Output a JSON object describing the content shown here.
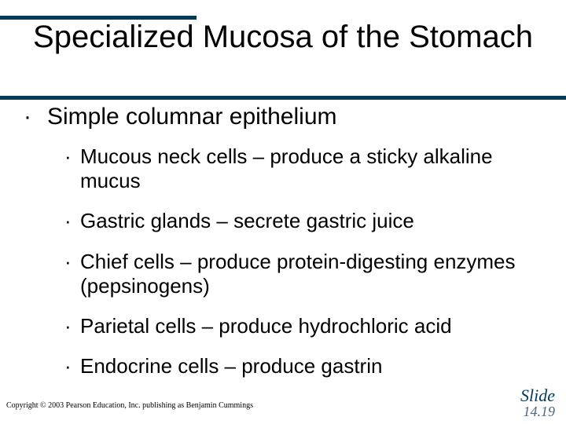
{
  "colors": {
    "rule": "#003b5c",
    "background": "#ffffff",
    "text": "#000000",
    "slide_label": "#003b5c"
  },
  "title": "Specialized Mucosa of the Stomach",
  "level1": {
    "bullet": "·",
    "text": "Simple columnar epithelium"
  },
  "level2": [
    {
      "bullet": "·",
      "text": "Mucous neck cells – produce a sticky alkaline mucus"
    },
    {
      "bullet": "·",
      "text": "Gastric glands – secrete gastric juice"
    },
    {
      "bullet": "·",
      "text": "Chief cells – produce protein-digesting enzymes (pepsinogens)"
    },
    {
      "bullet": "·",
      "text": "Parietal cells – produce hydrochloric acid"
    },
    {
      "bullet": "·",
      "text": "Endocrine cells – produce gastrin"
    }
  ],
  "copyright": "Copyright © 2003 Pearson Education, Inc. publishing as Benjamin Cummings",
  "slide": {
    "label": "Slide",
    "page": "14.19"
  }
}
